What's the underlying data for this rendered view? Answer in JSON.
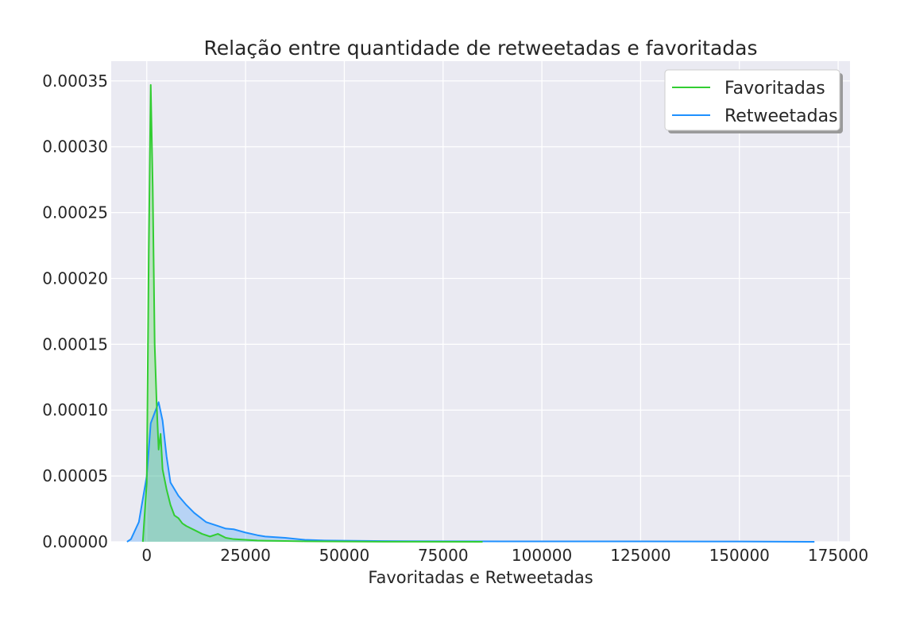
{
  "chart_data": {
    "type": "area",
    "title": "Relação entre quantidade de retweetadas e favoritadas",
    "xlabel": "Favoritadas e Retweetadas",
    "ylabel": "",
    "xlim": [
      -9000,
      178000
    ],
    "ylim": [
      0,
      0.000365
    ],
    "xticks": [
      0,
      25000,
      50000,
      75000,
      100000,
      125000,
      150000,
      175000
    ],
    "xtick_labels": [
      "0",
      "25000",
      "50000",
      "75000",
      "100000",
      "125000",
      "150000",
      "175000"
    ],
    "yticks": [
      0,
      5e-05,
      0.0001,
      0.00015,
      0.0002,
      0.00025,
      0.0003,
      0.00035
    ],
    "ytick_labels": [
      "0.00000",
      "0.00005",
      "0.00010",
      "0.00015",
      "0.00020",
      "0.00025",
      "0.00030",
      "0.00035"
    ],
    "grid": true,
    "legend_position": "top-right",
    "colors": {
      "background": "#eaeaf2",
      "grid": "#ffffff"
    },
    "series": [
      {
        "name": "Favoritadas",
        "color": "#32cd32",
        "fill": "rgba(50,205,50,0.25)",
        "x": [
          -1000,
          0,
          500,
          1000,
          1500,
          2000,
          2500,
          3000,
          3500,
          4000,
          5000,
          6000,
          7000,
          8000,
          9000,
          10000,
          12000,
          14000,
          16000,
          18000,
          20000,
          22000,
          25000,
          28000,
          30000,
          35000,
          40000,
          45000,
          50000,
          60000,
          70000,
          85000
        ],
        "y": [
          0,
          4.5e-05,
          0.00022,
          0.000347,
          0.00027,
          0.00015,
          0.000105,
          7e-05,
          8.2e-05,
          5.5e-05,
          4e-05,
          2.8e-05,
          2e-05,
          1.8e-05,
          1.4e-05,
          1.2e-05,
          9e-06,
          6e-06,
          4e-06,
          6e-06,
          3e-06,
          2e-06,
          1.5e-06,
          1e-06,
          8e-07,
          6e-07,
          4e-07,
          3e-07,
          2e-07,
          1e-07,
          5e-08,
          0
        ]
      },
      {
        "name": "Retweetadas",
        "color": "#1e90ff",
        "fill": "rgba(30,144,255,0.25)",
        "x": [
          -5000,
          -4000,
          -2000,
          0,
          1000,
          2000,
          3000,
          4000,
          5000,
          6000,
          8000,
          10000,
          12000,
          15000,
          18000,
          20000,
          22000,
          25000,
          28000,
          30000,
          35000,
          40000,
          45000,
          50000,
          60000,
          75000,
          100000,
          125000,
          150000,
          169000
        ],
        "y": [
          0,
          2e-06,
          1.5e-05,
          5e-05,
          9e-05,
          9.8e-05,
          0.000106,
          9.2e-05,
          6.5e-05,
          4.5e-05,
          3.5e-05,
          2.8e-05,
          2.2e-05,
          1.5e-05,
          1.2e-05,
          1e-05,
          9.5e-06,
          7e-06,
          5e-06,
          4e-06,
          3e-06,
          1.5e-06,
          1e-06,
          8e-07,
          5e-07,
          4e-07,
          3e-07,
          3e-07,
          2e-07,
          0
        ]
      }
    ]
  }
}
